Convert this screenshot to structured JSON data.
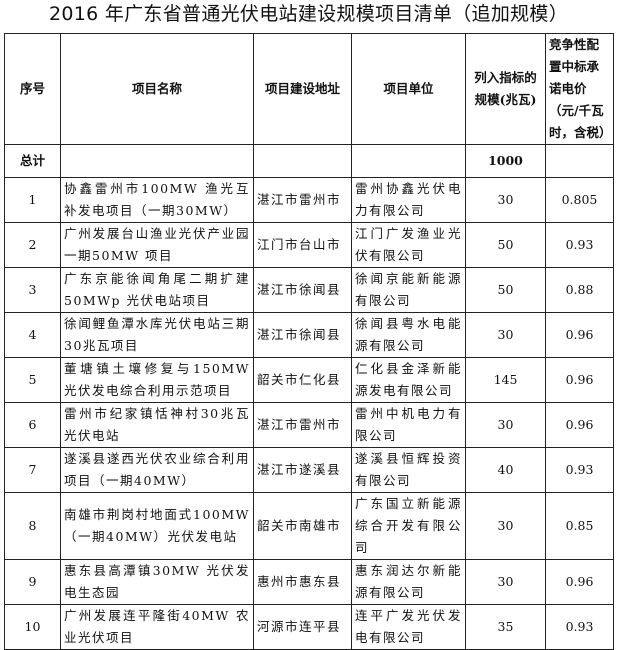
{
  "title": "2016 年广东省普通光伏电站建设规模项目清单（追加规模）",
  "headers": {
    "index": "序号",
    "name": "项目名称",
    "location": "项目建设地址",
    "company": "项目单位",
    "scale": "列入指标的规模(兆瓦)",
    "price": "竞争性配置中标承诺电价（元/千瓦时，含税）"
  },
  "total": {
    "label": "总计",
    "scale": "1000"
  },
  "rows": [
    {
      "index": "1",
      "name": "协鑫雷州市100MW 渔光互补发电项目（一期30MW）",
      "location": "湛江市雷州市",
      "company": "雷州协鑫光伏电力有限公司",
      "scale": "30",
      "price": "0.805"
    },
    {
      "index": "2",
      "name": "广州发展台山渔业光伏产业园一期50MW 项目",
      "location": "江门市台山市",
      "company": "江门广发渔业光伏有限公司",
      "scale": "50",
      "price": "0.93"
    },
    {
      "index": "3",
      "name": "广东京能徐闻角尾二期扩建50MWp 光伏电站项目",
      "location": "湛江市徐闻县",
      "company": "徐闻京能新能源有限公司",
      "scale": "50",
      "price": "0.88"
    },
    {
      "index": "4",
      "name": "徐闻鲤鱼潭水库光伏电站三期30兆瓦项目",
      "location": "湛江市徐闻县",
      "company": "徐闻县粤水电能源有限公司",
      "scale": "30",
      "price": "0.96"
    },
    {
      "index": "5",
      "name": "董塘镇土壤修复与150MW 光伏发电综合利用示范项目",
      "location": "韶关市仁化县",
      "company": "仁化县金泽新能源发电有限公司",
      "scale": "145",
      "price": "0.96"
    },
    {
      "index": "6",
      "name": "雷州市纪家镇恬神村30兆瓦光伏电站",
      "location": "湛江市雷州市",
      "company": "雷州中机电力有限公司",
      "scale": "30",
      "price": "0.96"
    },
    {
      "index": "7",
      "name": "遂溪县遂西光伏农业综合利用项目（一期40MW）",
      "location": "湛江市遂溪县",
      "company": "遂溪县恒辉投资有限公司",
      "scale": "40",
      "price": "0.93"
    },
    {
      "index": "8",
      "name": "南雄市荆岗村地面式100MW（一期40MW）光伏发电站",
      "location": "韶关市南雄市",
      "company": "广东国立新能源综合开发有限公司",
      "scale": "30",
      "price": "0.85"
    },
    {
      "index": "9",
      "name": "惠东县高潭镇30MW 光伏发电生态园",
      "location": "惠州市惠东县",
      "company": "惠东润达尔新能源有限公司",
      "scale": "30",
      "price": "0.96"
    },
    {
      "index": "10",
      "name": "广州发展连平隆街40MW 农业光伏项目",
      "location": "河源市连平县",
      "company": "连平广发光伏发电有限公司",
      "scale": "35",
      "price": "0.93"
    }
  ]
}
